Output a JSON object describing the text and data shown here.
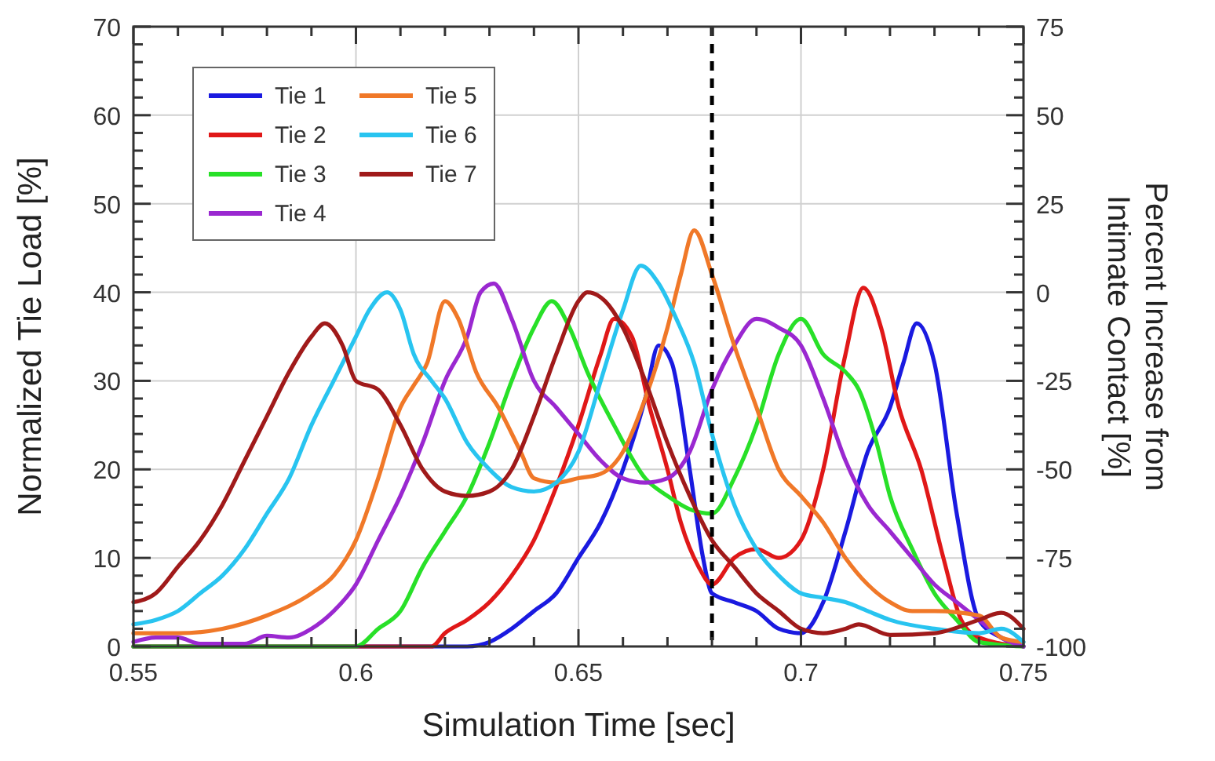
{
  "chart_data": {
    "type": "line",
    "xlabel": "Simulation Time [sec]",
    "ylabel": "Normalized Tie Load [%]",
    "y2label": "Percent Increase from Intimate Contact [%]",
    "xlim": [
      0.55,
      0.75
    ],
    "ylim": [
      0,
      70
    ],
    "y2lim": [
      -100,
      75
    ],
    "xticks": [
      0.55,
      {
        "value": 0.56,
        "label": null
      },
      {
        "value": 0.57,
        "label": null
      },
      {
        "value": 0.58,
        "label": null
      },
      {
        "value": 0.59,
        "label": null
      },
      0.6,
      {
        "value": 0.61,
        "label": null
      },
      {
        "value": 0.62,
        "label": null
      },
      {
        "value": 0.63,
        "label": null
      },
      {
        "value": 0.64,
        "label": null
      },
      0.65,
      {
        "value": 0.66,
        "label": null
      },
      {
        "value": 0.67,
        "label": null
      },
      {
        "value": 0.68,
        "label": null
      },
      {
        "value": 0.69,
        "label": null
      },
      0.7,
      {
        "value": 0.71,
        "label": null
      },
      {
        "value": 0.72,
        "label": null
      },
      {
        "value": 0.73,
        "label": null
      },
      {
        "value": 0.74,
        "label": null
      },
      0.75
    ],
    "yticks": [
      0,
      {
        "value": 2,
        "label": null
      },
      {
        "value": 4,
        "label": null
      },
      {
        "value": 6,
        "label": null
      },
      {
        "value": 8,
        "label": null
      },
      10,
      {
        "value": 12,
        "label": null
      },
      {
        "value": 14,
        "label": null
      },
      {
        "value": 16,
        "label": null
      },
      {
        "value": 18,
        "label": null
      },
      20,
      {
        "value": 22,
        "label": null
      },
      {
        "value": 24,
        "label": null
      },
      {
        "value": 26,
        "label": null
      },
      {
        "value": 28,
        "label": null
      },
      30,
      {
        "value": 32,
        "label": null
      },
      {
        "value": 34,
        "label": null
      },
      {
        "value": 36,
        "label": null
      },
      {
        "value": 38,
        "label": null
      },
      40,
      {
        "value": 42,
        "label": null
      },
      {
        "value": 44,
        "label": null
      },
      {
        "value": 46,
        "label": null
      },
      {
        "value": 48,
        "label": null
      },
      50,
      {
        "value": 52,
        "label": null
      },
      {
        "value": 54,
        "label": null
      },
      {
        "value": 56,
        "label": null
      },
      {
        "value": 58,
        "label": null
      },
      60,
      {
        "value": 62,
        "label": null
      },
      {
        "value": 64,
        "label": null
      },
      {
        "value": 66,
        "label": null
      },
      {
        "value": 68,
        "label": null
      },
      70
    ],
    "y2ticks": [
      -100,
      {
        "value": -95,
        "label": null
      },
      {
        "value": -90,
        "label": null
      },
      {
        "value": -85,
        "label": null
      },
      {
        "value": -80,
        "label": null
      },
      -75,
      {
        "value": -70,
        "label": null
      },
      {
        "value": -65,
        "label": null
      },
      {
        "value": -60,
        "label": null
      },
      {
        "value": -55,
        "label": null
      },
      -50,
      {
        "value": -45,
        "label": null
      },
      {
        "value": -40,
        "label": null
      },
      {
        "value": -35,
        "label": null
      },
      {
        "value": -30,
        "label": null
      },
      -25,
      {
        "value": -20,
        "label": null
      },
      {
        "value": -15,
        "label": null
      },
      {
        "value": -10,
        "label": null
      },
      {
        "value": -5,
        "label": null
      },
      0,
      {
        "value": 5,
        "label": null
      },
      {
        "value": 10,
        "label": null
      },
      {
        "value": 15,
        "label": null
      },
      {
        "value": 20,
        "label": null
      },
      25,
      {
        "value": 30,
        "label": null
      },
      {
        "value": 35,
        "label": null
      },
      {
        "value": 40,
        "label": null
      },
      {
        "value": 45,
        "label": null
      },
      50,
      {
        "value": 55,
        "label": null
      },
      {
        "value": 60,
        "label": null
      },
      {
        "value": 65,
        "label": null
      },
      {
        "value": 70,
        "label": null
      },
      75
    ],
    "grid": true,
    "legend": "top left",
    "line_style": "solid",
    "ref_lines": [
      {
        "axis": "x",
        "value": 0.68,
        "color": "#000000",
        "line_style": "dashed"
      }
    ],
    "series": [
      {
        "name": "Tie 1",
        "color": "#1a1ae0",
        "x": [
          0.55,
          0.6,
          0.625,
          0.63,
          0.635,
          0.64,
          0.645,
          0.65,
          0.655,
          0.66,
          0.665,
          0.668,
          0.671,
          0.675,
          0.678,
          0.68,
          0.685,
          0.69,
          0.695,
          0.7,
          0.705,
          0.71,
          0.715,
          0.72,
          0.723,
          0.726,
          0.73,
          0.735,
          0.74,
          0.745,
          0.75
        ],
        "values": [
          0,
          0,
          0,
          0.5,
          2,
          4,
          6,
          10,
          14,
          20,
          28,
          34,
          32,
          20,
          10,
          6,
          5,
          4,
          2,
          1.5,
          5,
          13,
          22,
          27,
          32,
          36.5,
          32,
          15,
          3,
          1,
          0
        ]
      },
      {
        "name": "Tie 2",
        "color": "#e01818",
        "x": [
          0.55,
          0.6,
          0.617,
          0.62,
          0.625,
          0.63,
          0.635,
          0.64,
          0.645,
          0.65,
          0.655,
          0.658,
          0.662,
          0.666,
          0.67,
          0.673,
          0.677,
          0.68,
          0.685,
          0.69,
          0.695,
          0.7,
          0.705,
          0.71,
          0.714,
          0.718,
          0.722,
          0.727,
          0.732,
          0.736,
          0.74,
          0.75
        ],
        "values": [
          0,
          0,
          0,
          1.5,
          3,
          5,
          8,
          12,
          18,
          25,
          33,
          37,
          35,
          27,
          20,
          14,
          9,
          7,
          10,
          11,
          10,
          12,
          20,
          33,
          40.5,
          36,
          27,
          20,
          10,
          3,
          1,
          0
        ]
      },
      {
        "name": "Tie 3",
        "color": "#28e028",
        "x": [
          0.55,
          0.6,
          0.605,
          0.61,
          0.615,
          0.62,
          0.625,
          0.63,
          0.635,
          0.64,
          0.644,
          0.648,
          0.652,
          0.658,
          0.665,
          0.67,
          0.675,
          0.68,
          0.685,
          0.69,
          0.695,
          0.7,
          0.705,
          0.71,
          0.713,
          0.717,
          0.72,
          0.725,
          0.73,
          0.735,
          0.74,
          0.75
        ],
        "values": [
          0,
          0,
          2,
          4,
          9,
          13,
          17,
          23,
          30,
          36,
          39,
          36,
          31,
          25,
          19,
          17,
          15.5,
          15,
          19,
          25,
          33,
          37,
          33,
          31,
          29,
          23,
          17,
          11,
          6,
          3,
          0.5,
          0
        ]
      },
      {
        "name": "Tie 4",
        "color": "#9a28d0",
        "x": [
          0.55,
          0.555,
          0.56,
          0.565,
          0.575,
          0.58,
          0.585,
          0.59,
          0.595,
          0.6,
          0.605,
          0.61,
          0.615,
          0.62,
          0.625,
          0.628,
          0.631,
          0.635,
          0.64,
          0.645,
          0.65,
          0.655,
          0.66,
          0.665,
          0.67,
          0.675,
          0.68,
          0.685,
          0.69,
          0.695,
          0.7,
          0.705,
          0.71,
          0.715,
          0.72,
          0.725,
          0.73,
          0.735,
          0.74,
          0.745,
          0.75
        ],
        "values": [
          0.5,
          1,
          1,
          0.3,
          0.3,
          1.2,
          1,
          2,
          4,
          7,
          12,
          17,
          23,
          30,
          35,
          40,
          41,
          37,
          30,
          27,
          24,
          21,
          19,
          18.5,
          19,
          22,
          29,
          34,
          37,
          36,
          34,
          28,
          21,
          16,
          13,
          10,
          7,
          5,
          3,
          1,
          0
        ]
      },
      {
        "name": "Tie 5",
        "color": "#f07828",
        "x": [
          0.55,
          0.56,
          0.57,
          0.58,
          0.59,
          0.595,
          0.6,
          0.605,
          0.61,
          0.613,
          0.616,
          0.62,
          0.623,
          0.627,
          0.632,
          0.637,
          0.64,
          0.645,
          0.65,
          0.655,
          0.66,
          0.665,
          0.67,
          0.673,
          0.676,
          0.68,
          0.685,
          0.69,
          0.695,
          0.7,
          0.705,
          0.71,
          0.715,
          0.72,
          0.725,
          0.73,
          0.74,
          0.745,
          0.75
        ],
        "values": [
          1.5,
          1.5,
          2,
          3.5,
          6,
          8,
          12,
          19,
          27,
          29.5,
          32,
          39,
          37,
          31,
          27,
          22,
          19,
          18.5,
          19,
          19.5,
          22,
          28,
          36,
          42,
          47,
          42,
          34,
          27,
          20,
          17,
          14,
          10,
          7,
          5,
          4,
          4,
          3.5,
          1,
          0.5
        ]
      },
      {
        "name": "Tie 6",
        "color": "#28c4f0",
        "x": [
          0.55,
          0.555,
          0.56,
          0.565,
          0.57,
          0.575,
          0.58,
          0.585,
          0.59,
          0.595,
          0.6,
          0.603,
          0.607,
          0.61,
          0.613,
          0.617,
          0.62,
          0.625,
          0.63,
          0.635,
          0.64,
          0.645,
          0.65,
          0.655,
          0.66,
          0.664,
          0.668,
          0.672,
          0.676,
          0.68,
          0.685,
          0.69,
          0.695,
          0.7,
          0.705,
          0.71,
          0.715,
          0.72,
          0.73,
          0.74,
          0.745,
          0.75
        ],
        "values": [
          2.5,
          3,
          4,
          6,
          8,
          11,
          15,
          19,
          25,
          30,
          35,
          38,
          40,
          38,
          33,
          30,
          28,
          23,
          20,
          18,
          17.5,
          18.5,
          22,
          30,
          38,
          43,
          41,
          37,
          32,
          24,
          16,
          11,
          8,
          6,
          5.5,
          5,
          4,
          3,
          2,
          1.5,
          2,
          0.5
        ]
      },
      {
        "name": "Tie 7",
        "color": "#a01a1a",
        "x": [
          0.55,
          0.555,
          0.56,
          0.565,
          0.57,
          0.575,
          0.58,
          0.585,
          0.59,
          0.593,
          0.597,
          0.6,
          0.605,
          0.61,
          0.615,
          0.62,
          0.625,
          0.63,
          0.635,
          0.64,
          0.645,
          0.65,
          0.652,
          0.656,
          0.66,
          0.665,
          0.67,
          0.675,
          0.68,
          0.685,
          0.69,
          0.695,
          0.7,
          0.705,
          0.71,
          0.713,
          0.72,
          0.73,
          0.74,
          0.745,
          0.75
        ],
        "values": [
          5,
          6,
          9,
          12,
          16,
          21,
          26,
          31,
          35,
          36.5,
          34,
          30,
          29,
          25,
          20,
          17.5,
          17,
          17.5,
          20,
          26,
          33,
          39,
          40,
          39,
          36,
          30,
          23,
          17,
          12,
          9,
          6,
          4,
          2,
          1.5,
          2,
          2.5,
          1.3,
          1.5,
          3,
          3.8,
          2
        ]
      }
    ]
  }
}
